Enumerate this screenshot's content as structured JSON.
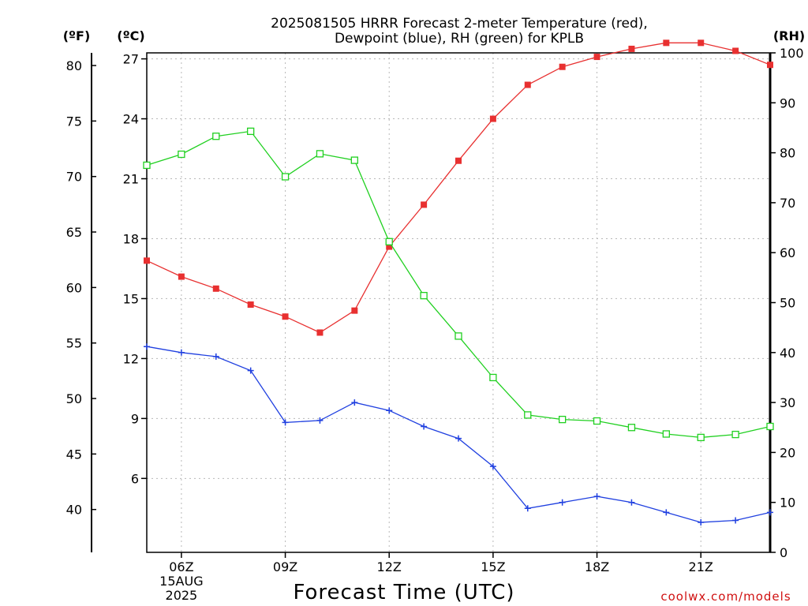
{
  "chart_data": {
    "type": "line",
    "title_line1": "2025081505 HRRR Forecast 2-meter Temperature (red),",
    "title_line2": "Dewpoint (blue), RH (green) for KPLB",
    "xlabel": "Forecast Time (UTC)",
    "credit": "coolwx.com/models",
    "units": {
      "fahrenheit": "(ºF)",
      "celsius": "(ºC)",
      "rh": "(RH)"
    },
    "x_hours": [
      5,
      6,
      7,
      8,
      9,
      10,
      11,
      12,
      13,
      14,
      15,
      16,
      17,
      18,
      19,
      20,
      21,
      22,
      23
    ],
    "x_ticks": [
      {
        "hour": 6,
        "label": "06Z",
        "sub1": "15AUG",
        "sub2": "2025"
      },
      {
        "hour": 9,
        "label": "09Z"
      },
      {
        "hour": 12,
        "label": "12Z"
      },
      {
        "hour": 15,
        "label": "15Z"
      },
      {
        "hour": 18,
        "label": "18Z"
      },
      {
        "hour": 21,
        "label": "21Z"
      }
    ],
    "xlim": [
      5,
      23
    ],
    "celsius_axis": {
      "ylim": [
        2.3,
        27.3
      ],
      "ticks": [
        6,
        9,
        12,
        15,
        18,
        21,
        24,
        27
      ]
    },
    "fahrenheit_axis": {
      "ticks": [
        40,
        45,
        50,
        55,
        60,
        65,
        70,
        75,
        80
      ]
    },
    "rh_axis": {
      "ylim": [
        0,
        100
      ],
      "ticks": [
        0,
        10,
        20,
        30,
        40,
        50,
        60,
        70,
        80,
        90,
        100
      ]
    },
    "grid": true,
    "series": [
      {
        "key": "temperature",
        "axis": "celsius",
        "color": "#e83030",
        "marker": "filled-square",
        "values": [
          16.9,
          16.1,
          15.5,
          14.7,
          14.1,
          13.3,
          14.4,
          17.6,
          19.7,
          21.9,
          24.0,
          25.7,
          26.6,
          27.1,
          27.5,
          27.8,
          27.8,
          27.4,
          26.7
        ]
      },
      {
        "key": "dewpoint",
        "axis": "celsius",
        "color": "#2040e0",
        "marker": "plus",
        "values": [
          12.6,
          12.3,
          12.1,
          11.4,
          8.8,
          8.9,
          9.8,
          9.4,
          8.6,
          8.0,
          6.6,
          4.5,
          4.8,
          5.1,
          4.8,
          4.3,
          3.8,
          3.9,
          4.3
        ]
      },
      {
        "key": "rh",
        "axis": "rh",
        "color": "#20d020",
        "marker": "open-square",
        "values": [
          77.5,
          79.7,
          83.3,
          84.3,
          75.2,
          79.8,
          78.5,
          62.2,
          51.4,
          43.3,
          35.0,
          27.5,
          26.6,
          26.3,
          25.0,
          23.7,
          23.0,
          23.6,
          25.2
        ]
      }
    ]
  }
}
